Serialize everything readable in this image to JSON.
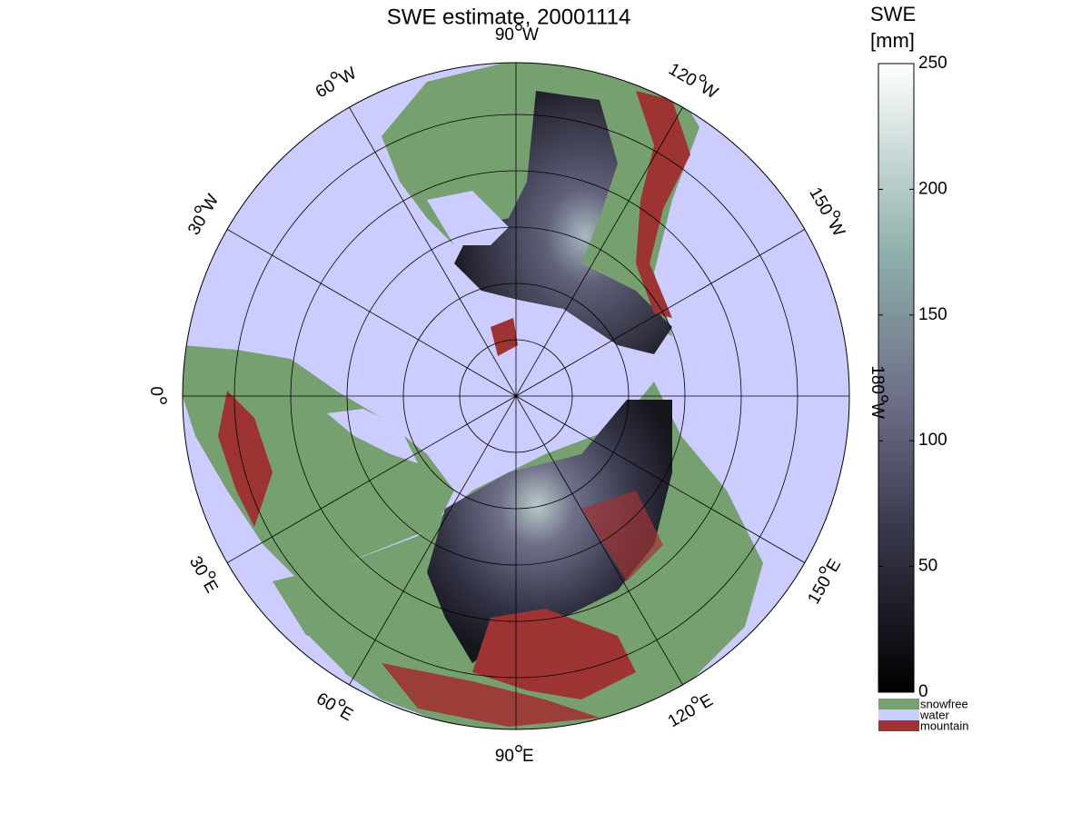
{
  "title": "SWE estimate, 20001114",
  "meridian_labels": [
    {
      "degrees": "90",
      "hemisphere": "W"
    },
    {
      "degrees": "120",
      "hemisphere": "W"
    },
    {
      "degrees": "150",
      "hemisphere": "W"
    },
    {
      "degrees": "180",
      "hemisphere": "W"
    },
    {
      "degrees": "150",
      "hemisphere": "E"
    },
    {
      "degrees": "120",
      "hemisphere": "E"
    },
    {
      "degrees": "90",
      "hemisphere": "E"
    },
    {
      "degrees": "60",
      "hemisphere": "E"
    },
    {
      "degrees": "30",
      "hemisphere": "E"
    },
    {
      "degrees": "0"
    },
    {
      "degrees": "30",
      "hemisphere": "W"
    },
    {
      "degrees": "60",
      "hemisphere": "W"
    }
  ],
  "colorbar": {
    "label": [
      "SWE",
      "[mm]"
    ],
    "lim": [
      0,
      250
    ],
    "ticks": [
      0,
      50,
      100,
      150,
      200,
      250
    ],
    "classes": [
      {
        "name": "snowfree",
        "color": "#77a070"
      },
      {
        "name": "water",
        "color": "#ccccff"
      },
      {
        "name": "mountain",
        "color": "#9e3333"
      }
    ]
  }
}
